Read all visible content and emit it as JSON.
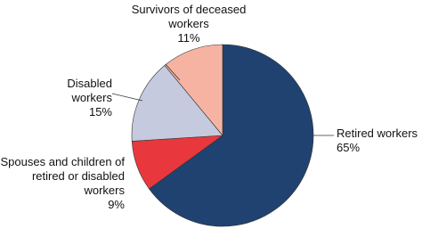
{
  "chart_data": {
    "type": "pie",
    "categories": [
      "Retired workers",
      "Spouses and children of retired or disabled workers",
      "Disabled workers",
      "Survivors of deceased workers"
    ],
    "values": [
      65,
      9,
      15,
      11
    ],
    "value_labels": [
      "65%",
      "9%",
      "15%",
      "11%"
    ],
    "colors": [
      "#1f4271",
      "#e8383d",
      "#c5cadf",
      "#f7b3a2"
    ]
  }
}
